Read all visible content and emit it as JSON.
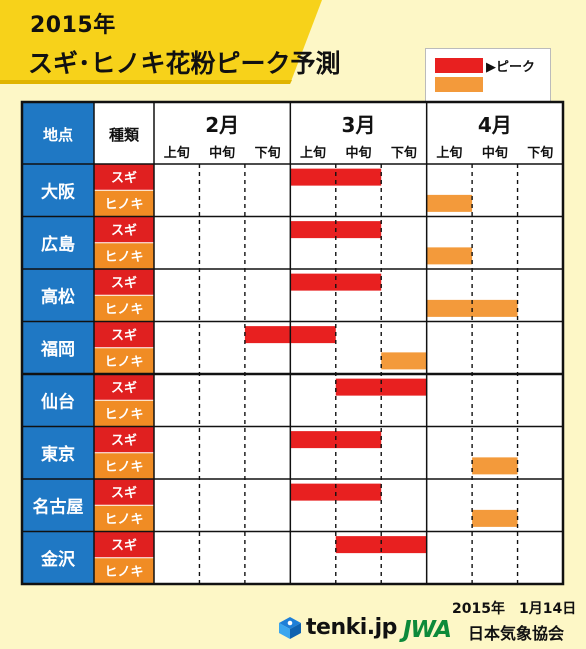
{
  "title": {
    "year": "2015年",
    "main": "スギ･ヒノキ花粉ピーク予測"
  },
  "legend": {
    "label": "▶ピーク"
  },
  "table": {
    "header_city": "地点",
    "header_type": "種類"
  },
  "colors": {
    "sugi_peak": "#e82020",
    "hinoki_peak": "#f39a3b",
    "city_bg": "#1f78c4",
    "sugi_bg": "#e02020",
    "hinoki_bg": "#f08c24"
  },
  "footer": {
    "date": "2015年　1月14日",
    "brand": "tenki.jp",
    "org_mark": "JWA",
    "org_name": "日本気象協会"
  },
  "chart_data": {
    "type": "table",
    "months": [
      "2月",
      "3月",
      "4月"
    ],
    "periods": [
      "上旬",
      "中旬",
      "下旬"
    ],
    "types": [
      "スギ",
      "ヒノキ"
    ],
    "cities": [
      {
        "name": "大阪",
        "sugi": [
          "3月上旬",
          "3月中旬"
        ],
        "hinoki": [
          "4月上旬"
        ]
      },
      {
        "name": "広島",
        "sugi": [
          "3月上旬",
          "3月中旬"
        ],
        "hinoki": [
          "4月上旬"
        ]
      },
      {
        "name": "高松",
        "sugi": [
          "3月上旬",
          "3月中旬"
        ],
        "hinoki": [
          "4月上旬",
          "4月中旬"
        ]
      },
      {
        "name": "福岡",
        "sugi": [
          "2月下旬",
          "3月上旬"
        ],
        "hinoki": [
          "3月下旬"
        ]
      },
      {
        "name": "仙台",
        "sugi": [
          "3月中旬",
          "3月下旬"
        ],
        "hinoki": []
      },
      {
        "name": "東京",
        "sugi": [
          "3月上旬",
          "3月中旬"
        ],
        "hinoki": [
          "4月中旬"
        ]
      },
      {
        "name": "名古屋",
        "sugi": [
          "3月上旬",
          "3月中旬"
        ],
        "hinoki": [
          "4月中旬"
        ]
      },
      {
        "name": "金沢",
        "sugi": [
          "3月中旬",
          "3月下旬"
        ],
        "hinoki": []
      }
    ]
  }
}
